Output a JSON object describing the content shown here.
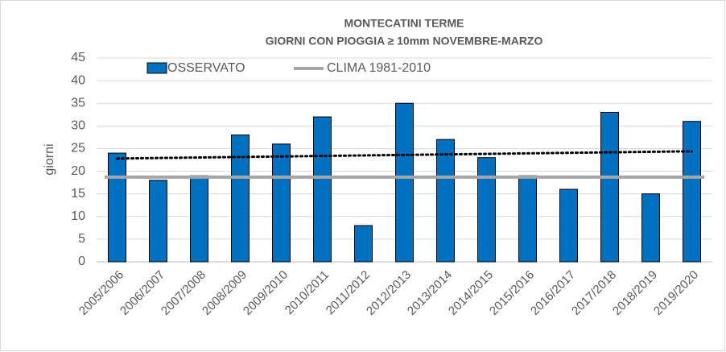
{
  "chart_data": {
    "type": "bar",
    "title": "MONTECATINI TERME",
    "subtitle": "GIORNI CON PIOGGIA  ≥ 10mm NOVEMBRE-MARZO",
    "y_label": "giorni",
    "categories": [
      "2005/2006",
      "2006/2007",
      "2007/2008",
      "2008/2009",
      "2009/2010",
      "2010/2011",
      "2011/2012",
      "2012/2013",
      "2013/2014",
      "2014/2015",
      "2015/2016",
      "2016/2017",
      "2017/2018",
      "2018/2019",
      "2019/2020"
    ],
    "series": [
      {
        "name": "OSSERVATO",
        "type": "bar",
        "color": "#0070c0",
        "values": [
          24,
          18,
          19,
          28,
          26,
          32,
          8,
          35,
          27,
          23,
          19,
          16,
          33,
          15,
          31
        ]
      },
      {
        "name": "CLIMA 1981-2010",
        "type": "line",
        "color": "#a6a6a6",
        "values": [
          18.7,
          18.7,
          18.7,
          18.7,
          18.7,
          18.7,
          18.7,
          18.7,
          18.7,
          18.7,
          18.7,
          18.7,
          18.7,
          18.7,
          18.7
        ]
      }
    ],
    "trendline": {
      "color": "#000000",
      "values": [
        22.8,
        24.4
      ]
    },
    "ylim": [
      0,
      45
    ],
    "yticks": [
      0,
      5,
      10,
      15,
      20,
      25,
      30,
      35,
      40,
      45
    ],
    "grid": true,
    "legend": "top-left"
  }
}
